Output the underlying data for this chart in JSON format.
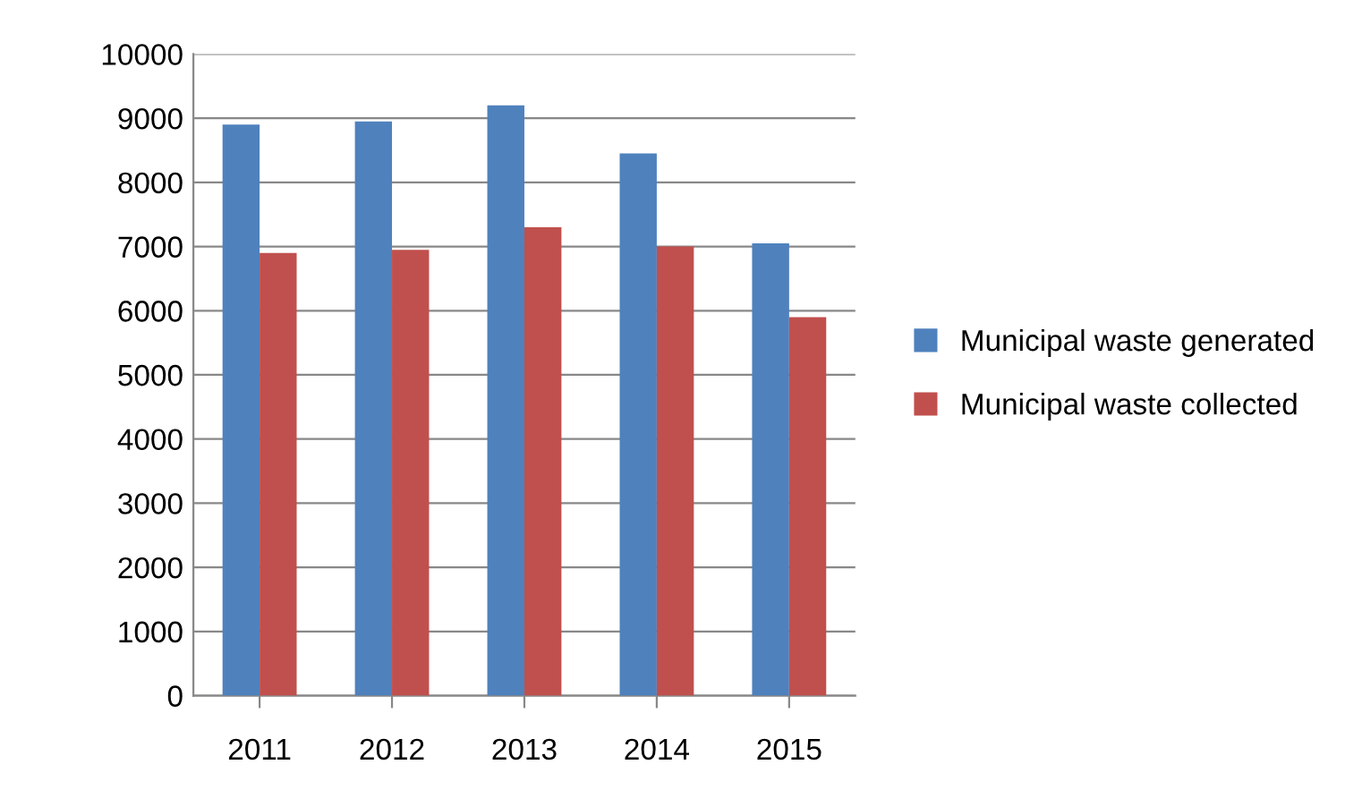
{
  "chart_data": {
    "type": "bar",
    "categories": [
      "2011",
      "2012",
      "2013",
      "2014",
      "2015"
    ],
    "series": [
      {
        "name": "Municipal waste generated",
        "color": "#4f81bd",
        "values": [
          8900,
          8950,
          9200,
          8450,
          7050
        ]
      },
      {
        "name": "Municipal waste collected",
        "color": "#c0504d",
        "values": [
          6900,
          6950,
          7300,
          7000,
          5900
        ]
      }
    ],
    "ylim": [
      0,
      10000
    ],
    "yticks": [
      0,
      1000,
      2000,
      3000,
      4000,
      5000,
      6000,
      7000,
      8000,
      9000,
      10000
    ],
    "grid": "y",
    "legend": "right"
  }
}
